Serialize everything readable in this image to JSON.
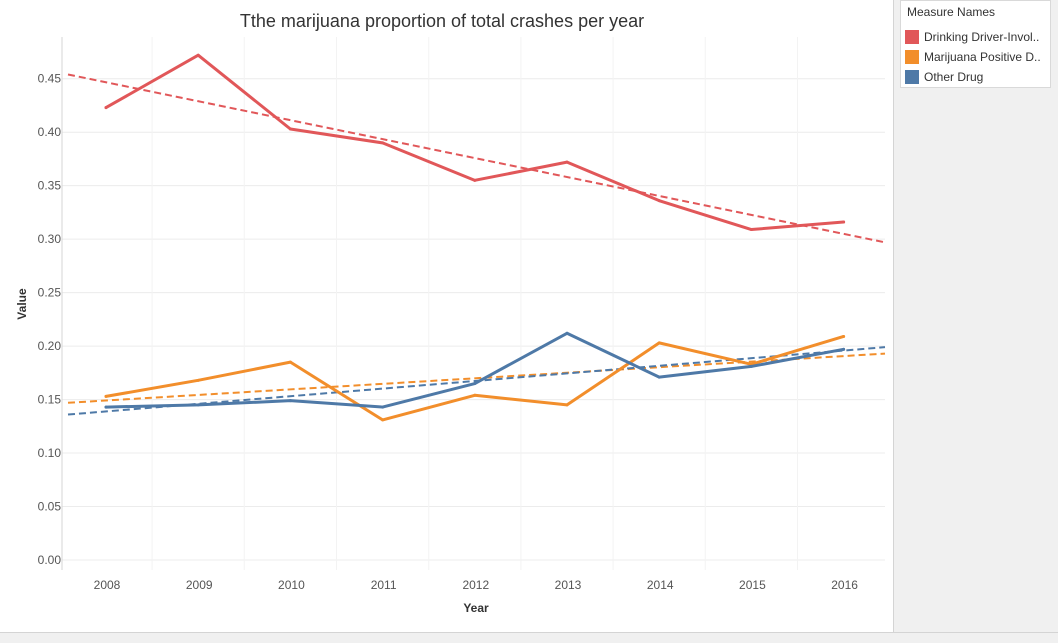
{
  "chart_data": {
    "type": "line",
    "title": "Tthe marijuana proportion of total crashes per year",
    "xlabel": "Year",
    "ylabel": "Value",
    "categories": [
      "2008",
      "2009",
      "2010",
      "2011",
      "2012",
      "2013",
      "2014",
      "2015",
      "2016"
    ],
    "yticks": [
      "0.00",
      "0.05",
      "0.10",
      "0.15",
      "0.20",
      "0.25",
      "0.30",
      "0.35",
      "0.40",
      "0.45"
    ],
    "ylim": [
      0,
      0.475
    ],
    "grid": true,
    "trend_lines": true,
    "legend_position": "top-right",
    "legend_title": "Measure Names",
    "series": [
      {
        "name": "Drinking Driver-Invol..",
        "color": "#e15759",
        "values": [
          0.423,
          0.472,
          0.403,
          0.39,
          0.355,
          0.372,
          0.336,
          0.309,
          0.316
        ],
        "trend": [
          0.454,
          0.297
        ]
      },
      {
        "name": "Marijuana Positive D..",
        "color": "#f28e2b",
        "values": [
          0.153,
          0.168,
          0.185,
          0.131,
          0.154,
          0.145,
          0.203,
          0.183,
          0.209
        ],
        "trend": [
          0.147,
          0.193
        ]
      },
      {
        "name": "Other Drug",
        "color": "#4e79a7",
        "values": [
          0.143,
          0.145,
          0.149,
          0.143,
          0.165,
          0.212,
          0.171,
          0.181,
          0.197
        ],
        "trend": [
          0.136,
          0.199
        ]
      }
    ]
  }
}
